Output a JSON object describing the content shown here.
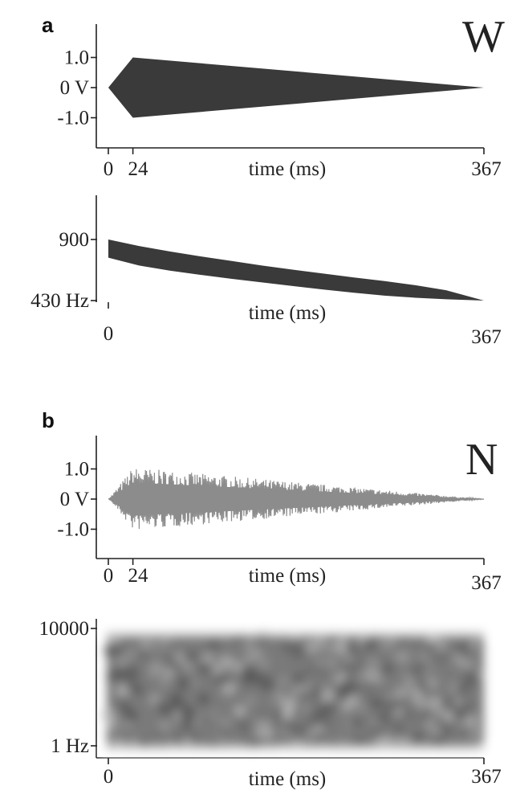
{
  "panels": [
    {
      "letter": "a",
      "big_label": "W"
    },
    {
      "letter": "b",
      "big_label": "N"
    }
  ],
  "colors": {
    "dark_fill": "#3a3a3a",
    "noise_fill": "#8c8c8c",
    "spectrum": "#7a7a7a"
  },
  "chart_data": [
    {
      "id": "a-amplitude",
      "type": "area",
      "description_shape": "amplitude envelope rising linearly then decaying linearly",
      "xlabel": "time (ms)",
      "x_ticks": [
        {
          "value": 0,
          "label": "0"
        },
        {
          "value": 24,
          "label": "24"
        },
        {
          "value": 367,
          "label": "367"
        }
      ],
      "y_ticks": [
        {
          "value": 1.0,
          "label": "1.0"
        },
        {
          "value": 0,
          "label": "0 V"
        },
        {
          "value": -1.0,
          "label": "-1.0"
        }
      ],
      "xlim": [
        0,
        367
      ],
      "ylim": [
        -1.8,
        1.8
      ],
      "envelope": {
        "x": [
          0,
          24,
          367
        ],
        "upper": [
          0,
          1.0,
          0
        ],
        "lower": [
          0,
          -1.0,
          0
        ]
      }
    },
    {
      "id": "a-frequency",
      "type": "area",
      "xlabel": "time (ms)",
      "x_ticks": [
        {
          "value": 0,
          "label": "0"
        },
        {
          "value": 367,
          "label": "367"
        }
      ],
      "y_ticks": [
        {
          "value": 900,
          "label": "900"
        },
        {
          "value": 430,
          "label": "430 Hz"
        }
      ],
      "xlim": [
        0,
        367
      ],
      "band": {
        "x": [
          0,
          30,
          60,
          90,
          120,
          150,
          180,
          210,
          240,
          270,
          300,
          330,
          367
        ],
        "upper": [
          900,
          850,
          808,
          770,
          735,
          700,
          668,
          638,
          608,
          580,
          548,
          510,
          430
        ],
        "lower": [
          760,
          700,
          660,
          628,
          598,
          570,
          542,
          515,
          490,
          468,
          452,
          440,
          430
        ]
      }
    },
    {
      "id": "b-amplitude",
      "type": "area",
      "xlabel": "time (ms)",
      "x_ticks": [
        {
          "value": 0,
          "label": "0"
        },
        {
          "value": 24,
          "label": "24"
        },
        {
          "value": 367,
          "label": "367"
        }
      ],
      "y_ticks": [
        {
          "value": 1.0,
          "label": "1.0"
        },
        {
          "value": 0,
          "label": "0 V"
        },
        {
          "value": -1.0,
          "label": "-1.0"
        }
      ],
      "xlim": [
        0,
        367
      ],
      "ylim": [
        -1.8,
        1.8
      ],
      "envelope": {
        "x": [
          0,
          24,
          367
        ],
        "upper": [
          0,
          1.05,
          0
        ],
        "lower": [
          0,
          -1.05,
          0
        ]
      }
    },
    {
      "id": "b-spectrum",
      "type": "heatmap",
      "xlabel": "time (ms)",
      "x_ticks": [
        {
          "value": 0,
          "label": "0"
        },
        {
          "value": 367,
          "label": "367"
        }
      ],
      "y_ticks": [
        {
          "value": 10000,
          "label": "10000"
        },
        {
          "value": 1,
          "label": "1 Hz"
        }
      ],
      "xlim": [
        0,
        367
      ],
      "ylim": [
        1,
        10000
      ]
    }
  ]
}
